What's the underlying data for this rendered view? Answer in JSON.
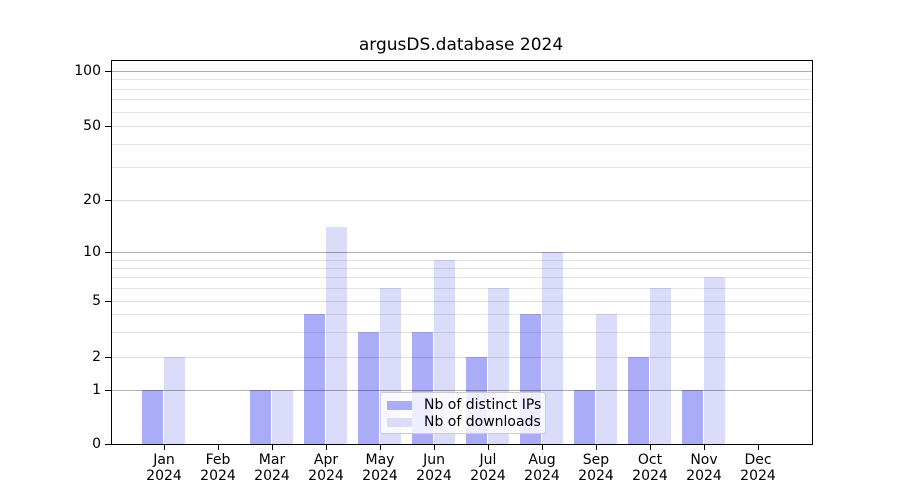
{
  "title": "argusDS.database 2024",
  "chart_data": {
    "type": "bar",
    "title": "argusDS.database 2024",
    "categories": [
      "Jan 2024",
      "Feb 2024",
      "Mar 2024",
      "Apr 2024",
      "May 2024",
      "Jun 2024",
      "Jul 2024",
      "Aug 2024",
      "Sep 2024",
      "Oct 2024",
      "Nov 2024",
      "Dec 2024"
    ],
    "series": [
      {
        "name": "Nb of distinct IPs",
        "color": "#aaacf8",
        "values": [
          1,
          0,
          1,
          4,
          3,
          3,
          2,
          4,
          1,
          2,
          1,
          0
        ]
      },
      {
        "name": "Nb of downloads",
        "color": "#dadcfa",
        "values": [
          2,
          0,
          1,
          14,
          6,
          9,
          6,
          10,
          4,
          6,
          7,
          0
        ]
      }
    ],
    "xlabel": "",
    "ylabel": "",
    "yscale": "symlog",
    "yticks_labeled": [
      0,
      1,
      2,
      5,
      10,
      20,
      50,
      100
    ],
    "yticks_minor": [
      3,
      4,
      6,
      7,
      8,
      9,
      30,
      40,
      60,
      70,
      80,
      90
    ],
    "ylim": [
      0,
      115
    ],
    "grid": true,
    "grid_over_bars": true,
    "legend_position": "lower center",
    "colors": {
      "background": "#ffffff",
      "text": "#000000",
      "spine": "#000000",
      "grid_major": "#adadad",
      "grid_minor": "#e8e8e8",
      "legend_border": "#cccccc"
    }
  }
}
